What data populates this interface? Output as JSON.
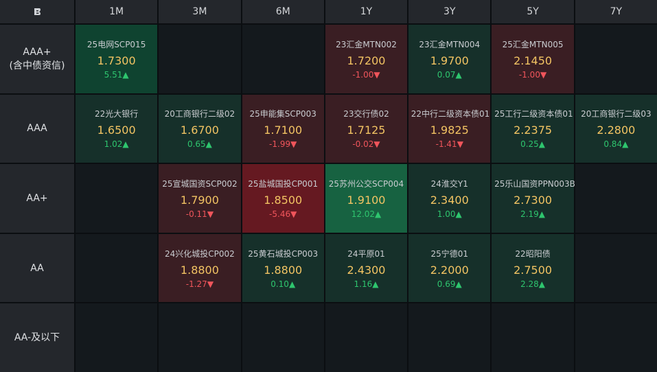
{
  "corner_icon": "brand-logo",
  "header": [
    "1M",
    "3M",
    "6M",
    "1Y",
    "3Y",
    "5Y",
    "7Y"
  ],
  "rows": [
    {
      "label": [
        "AAA+",
        "(含中债资信)"
      ],
      "cells": [
        {
          "name": "25电网SCP015",
          "rate": "1.7300",
          "change": "5.51",
          "dir": "up",
          "tone": "g2"
        },
        null,
        null,
        {
          "name": "23汇金MTN002",
          "rate": "1.7200",
          "change": "-1.00",
          "dir": "down",
          "tone": "r1"
        },
        {
          "name": "23汇金MTN004",
          "rate": "1.9700",
          "change": "0.07",
          "dir": "up",
          "tone": "g1"
        },
        {
          "name": "25汇金MTN005",
          "rate": "2.1450",
          "change": "-1.00",
          "dir": "down",
          "tone": "r1"
        },
        null
      ]
    },
    {
      "label": [
        "AAA"
      ],
      "cells": [
        {
          "name": "22光大银行",
          "rate": "1.6500",
          "change": "1.02",
          "dir": "up",
          "tone": "g1"
        },
        {
          "name": "20工商银行二级02",
          "rate": "1.6700",
          "change": "0.65",
          "dir": "up",
          "tone": "g1"
        },
        {
          "name": "25申能集SCP003",
          "rate": "1.7100",
          "change": "-1.99",
          "dir": "down",
          "tone": "r1"
        },
        {
          "name": "23交行债02",
          "rate": "1.7125",
          "change": "-0.02",
          "dir": "down",
          "tone": "r1"
        },
        {
          "name": "22中行二级资本债01",
          "rate": "1.9825",
          "change": "-1.41",
          "dir": "down",
          "tone": "r1"
        },
        {
          "name": "25工行二级资本债01",
          "rate": "2.2375",
          "change": "0.25",
          "dir": "up",
          "tone": "g1"
        },
        {
          "name": "20工商银行二级03",
          "rate": "2.2800",
          "change": "0.84",
          "dir": "up",
          "tone": "g1"
        }
      ]
    },
    {
      "label": [
        "AA+"
      ],
      "cells": [
        null,
        {
          "name": "25宣城国资SCP002",
          "rate": "1.7900",
          "change": "-0.11",
          "dir": "down",
          "tone": "r1"
        },
        {
          "name": "25盐城国投CP001",
          "rate": "1.8500",
          "change": "-5.46",
          "dir": "down",
          "tone": "r3"
        },
        {
          "name": "25苏州公交SCP004",
          "rate": "1.9100",
          "change": "12.02",
          "dir": "up",
          "tone": "g3"
        },
        {
          "name": "24淮交Y1",
          "rate": "2.3400",
          "change": "1.00",
          "dir": "up",
          "tone": "g1"
        },
        {
          "name": "25乐山国资PPN003B",
          "rate": "2.7300",
          "change": "2.19",
          "dir": "up",
          "tone": "g1"
        },
        null
      ]
    },
    {
      "label": [
        "AA"
      ],
      "cells": [
        null,
        {
          "name": "24兴化城投CP002",
          "rate": "1.8800",
          "change": "-1.27",
          "dir": "down",
          "tone": "r1"
        },
        {
          "name": "25黄石城投CP003",
          "rate": "1.8800",
          "change": "0.10",
          "dir": "up",
          "tone": "g1"
        },
        {
          "name": "24平原01",
          "rate": "2.4300",
          "change": "1.16",
          "dir": "up",
          "tone": "g1"
        },
        {
          "name": "25宁德01",
          "rate": "2.2000",
          "change": "0.69",
          "dir": "up",
          "tone": "g1"
        },
        {
          "name": "22昭阳债",
          "rate": "2.7500",
          "change": "2.28",
          "dir": "up",
          "tone": "g1"
        },
        null
      ]
    },
    {
      "label": [
        "AA-及以下"
      ],
      "cells": [
        null,
        null,
        null,
        null,
        null,
        null,
        null
      ]
    }
  ],
  "colors": {
    "up": "#2ec56e",
    "down": "#f0555b",
    "rate": "#f3c463"
  }
}
